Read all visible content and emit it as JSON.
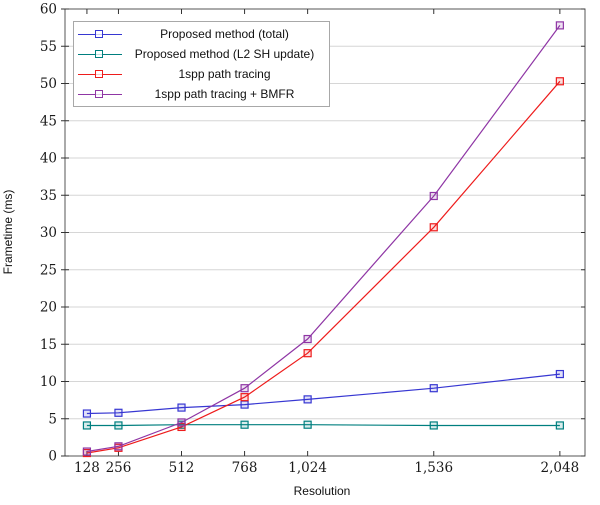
{
  "chart_data": {
    "type": "line",
    "title": "",
    "xlabel": "Resolution",
    "ylabel": "Frametime (ms)",
    "grid": "horizontal",
    "legend_position": "top-left",
    "x": [
      128,
      256,
      512,
      768,
      1024,
      1536,
      2048
    ],
    "x_tick_labels": [
      "128",
      "256",
      "512",
      "768",
      "1,024",
      "1,536",
      "2,048"
    ],
    "y_ticks": [
      0,
      5,
      10,
      15,
      20,
      25,
      30,
      35,
      40,
      45,
      50,
      55,
      60
    ],
    "ylim": [
      0,
      60
    ],
    "xlim": [
      39,
      2150
    ],
    "series": [
      {
        "name": "Proposed method (total)",
        "color": "#3737d2",
        "marker": "square",
        "values": [
          5.7,
          5.8,
          6.5,
          6.9,
          7.6,
          9.1,
          11.0
        ]
      },
      {
        "name": "Proposed method (L2 SH update)",
        "color": "#007f7f",
        "marker": "square",
        "values": [
          4.1,
          4.1,
          4.2,
          4.2,
          4.2,
          4.1,
          4.1
        ]
      },
      {
        "name": "1spp path tracing",
        "color": "#ee1c1c",
        "marker": "square",
        "values": [
          0.4,
          1.1,
          3.9,
          7.9,
          13.8,
          30.7,
          50.3
        ]
      },
      {
        "name": "1spp path tracing + BMFR",
        "color": "#8f36a5",
        "marker": "square",
        "values": [
          0.6,
          1.3,
          4.5,
          9.1,
          15.7,
          34.9,
          57.8
        ]
      }
    ],
    "style": {
      "grid_color": "#d6d6d6",
      "frame_color": "#555555",
      "tick_color": "#333333",
      "tick_label_color": "#1a1a1a"
    }
  }
}
